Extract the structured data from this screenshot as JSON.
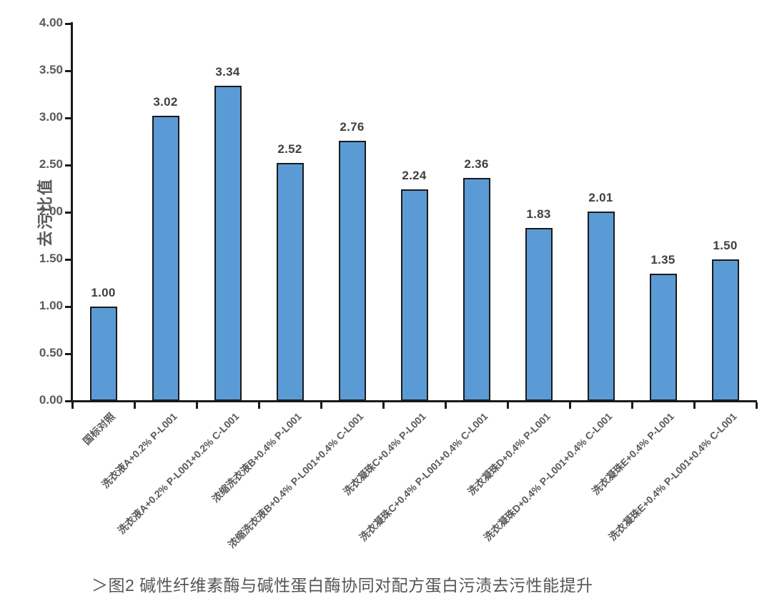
{
  "figure": {
    "caption": "＞图2 碱性纤维素酶与碱性蛋白酶协同对配方蛋白污渍去污性能提升"
  },
  "chart_data": {
    "type": "bar",
    "title": "",
    "xlabel": "",
    "ylabel": "去污比值",
    "ylim": [
      0,
      4
    ],
    "ytick_step": 0.5,
    "ytick_labels": [
      "0.00",
      "0.50",
      "1.00",
      "1.50",
      "2.00",
      "2.50",
      "3.00",
      "3.50",
      "4.00"
    ],
    "grid": false,
    "legend": null,
    "categories": [
      "国标对照",
      "洗衣液A+0.2% P-L001",
      "洗衣液A+0.2% P-L001+0.2% C-L001",
      "浓缩洗衣液B+0.4% P-L001",
      "浓缩洗衣液B+0.4% P-L001+0.4% C-L001",
      "洗衣凝珠C+0.4% P-L001",
      "洗衣凝珠C+0.4% P-L001+0.4% C-L001",
      "洗衣凝珠D+0.4% P-L001",
      "洗衣凝珠D+0.4% P-L001+0.4% C-L001",
      "洗衣凝珠E+0.4% P-L001",
      "洗衣凝珠E+0.4% P-L001+0.4% C-L001"
    ],
    "values": [
      1.0,
      3.02,
      3.34,
      2.52,
      2.76,
      2.24,
      2.36,
      1.83,
      2.01,
      1.35,
      1.5
    ],
    "value_labels": [
      "1.00",
      "3.02",
      "3.34",
      "2.52",
      "2.76",
      "2.24",
      "2.36",
      "1.83",
      "2.01",
      "1.35",
      "1.50"
    ],
    "colors": {
      "bar_fill": "#5B9BD5",
      "bar_border": "#1a1a1a",
      "axis": "#1a1a1a",
      "tick_label": "#595959",
      "value_label": "#3f3f3f"
    }
  }
}
